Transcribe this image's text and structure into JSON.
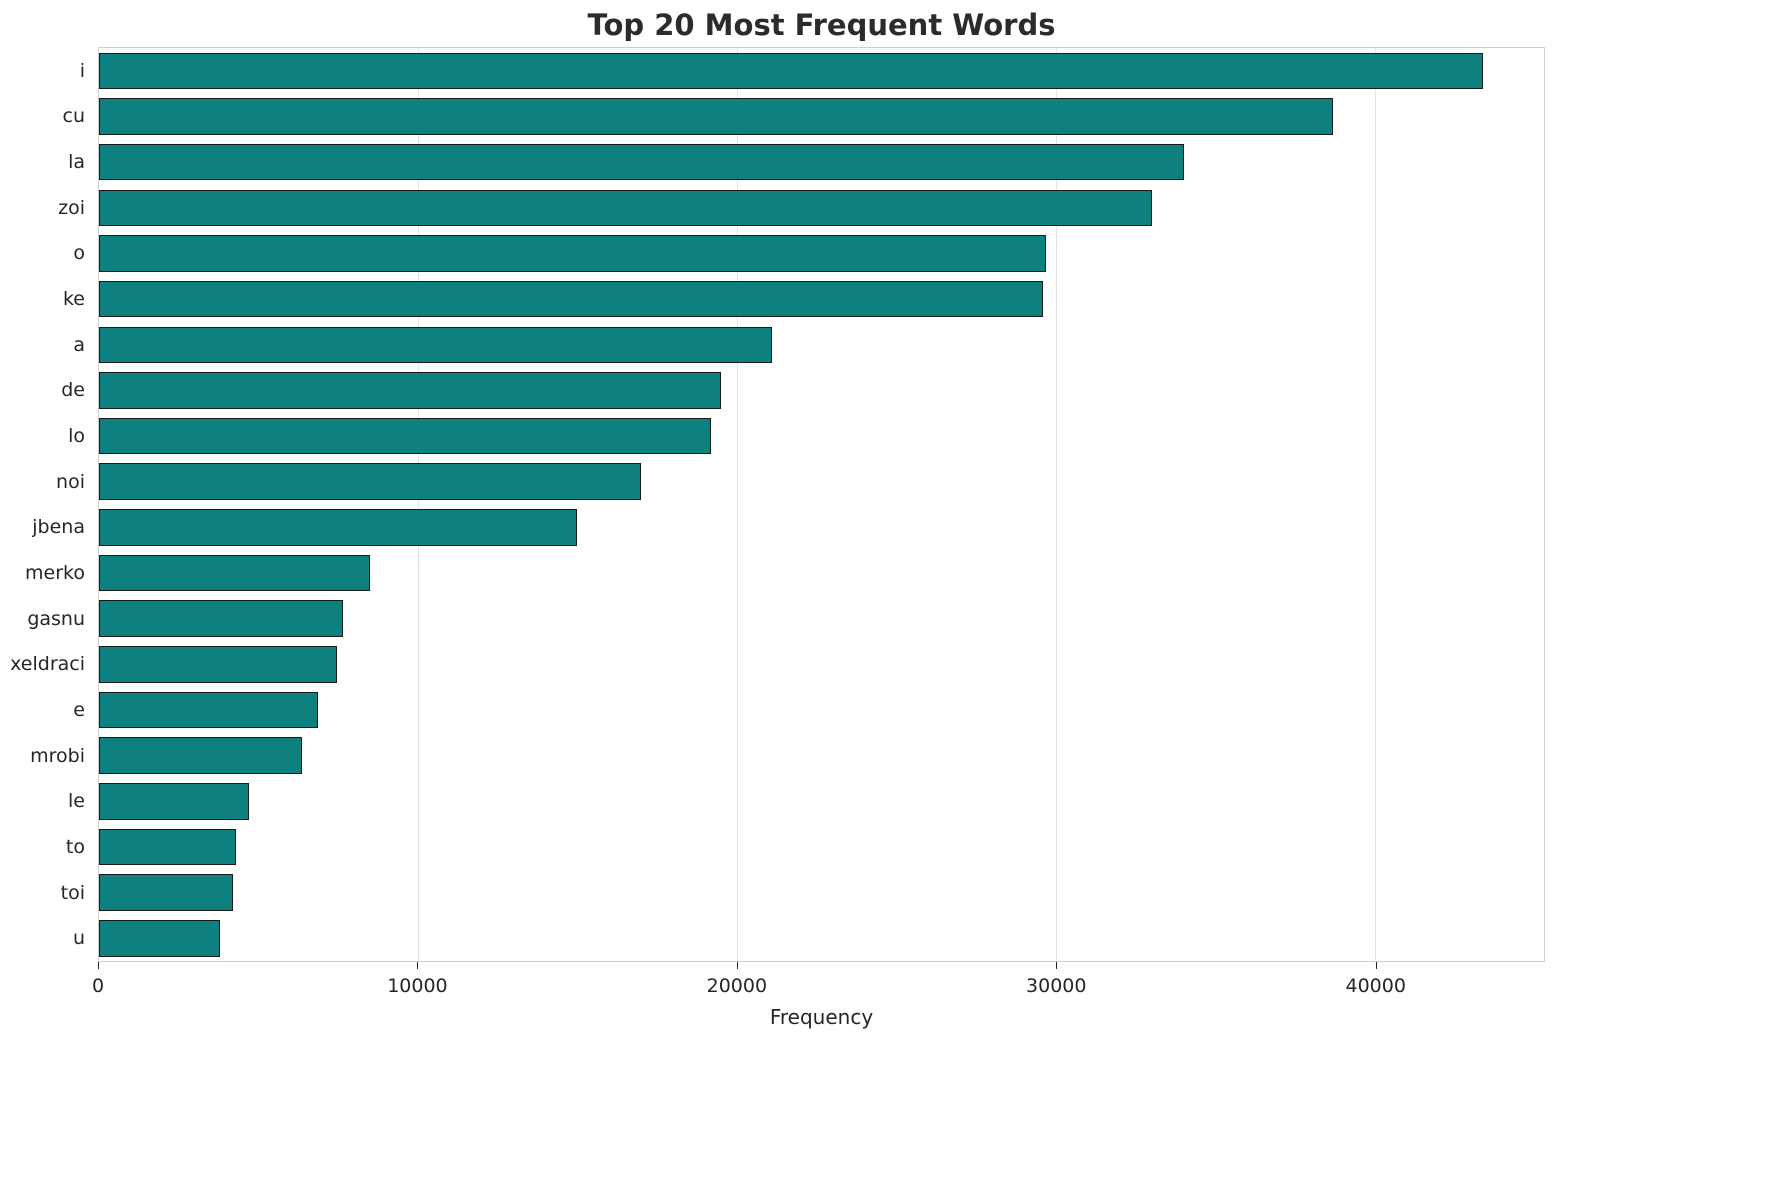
{
  "chart_data": {
    "type": "bar",
    "orientation": "horizontal",
    "title": "Top 20 Most Frequent Words",
    "xlabel": "Frequency",
    "ylabel": "",
    "categories": [
      "i",
      "cu",
      "la",
      "zoi",
      "o",
      "ke",
      "a",
      "de",
      "lo",
      "noi",
      "jbena",
      "merko",
      "gasnu",
      "xeldraci",
      "e",
      "mrobi",
      "le",
      "to",
      "toi",
      "u"
    ],
    "values": [
      43400,
      38700,
      34000,
      33000,
      29700,
      29600,
      21100,
      19500,
      19200,
      17000,
      15000,
      8500,
      7650,
      7450,
      6850,
      6350,
      4700,
      4300,
      4200,
      3800
    ],
    "xlim": [
      0,
      45300
    ],
    "xticks": [
      0,
      10000,
      20000,
      30000,
      40000
    ],
    "xtick_labels": [
      "0",
      "10000",
      "20000",
      "30000",
      "40000"
    ],
    "grid": "vertical",
    "legend": "none",
    "colors": {
      "bar_fill": "#0f8080",
      "bar_edge": "#1a1a1a",
      "grid": "#e3e3e3",
      "spine": "#cfcfcf",
      "title_text": "#2b2b2b",
      "tick_text": "#262626"
    }
  }
}
